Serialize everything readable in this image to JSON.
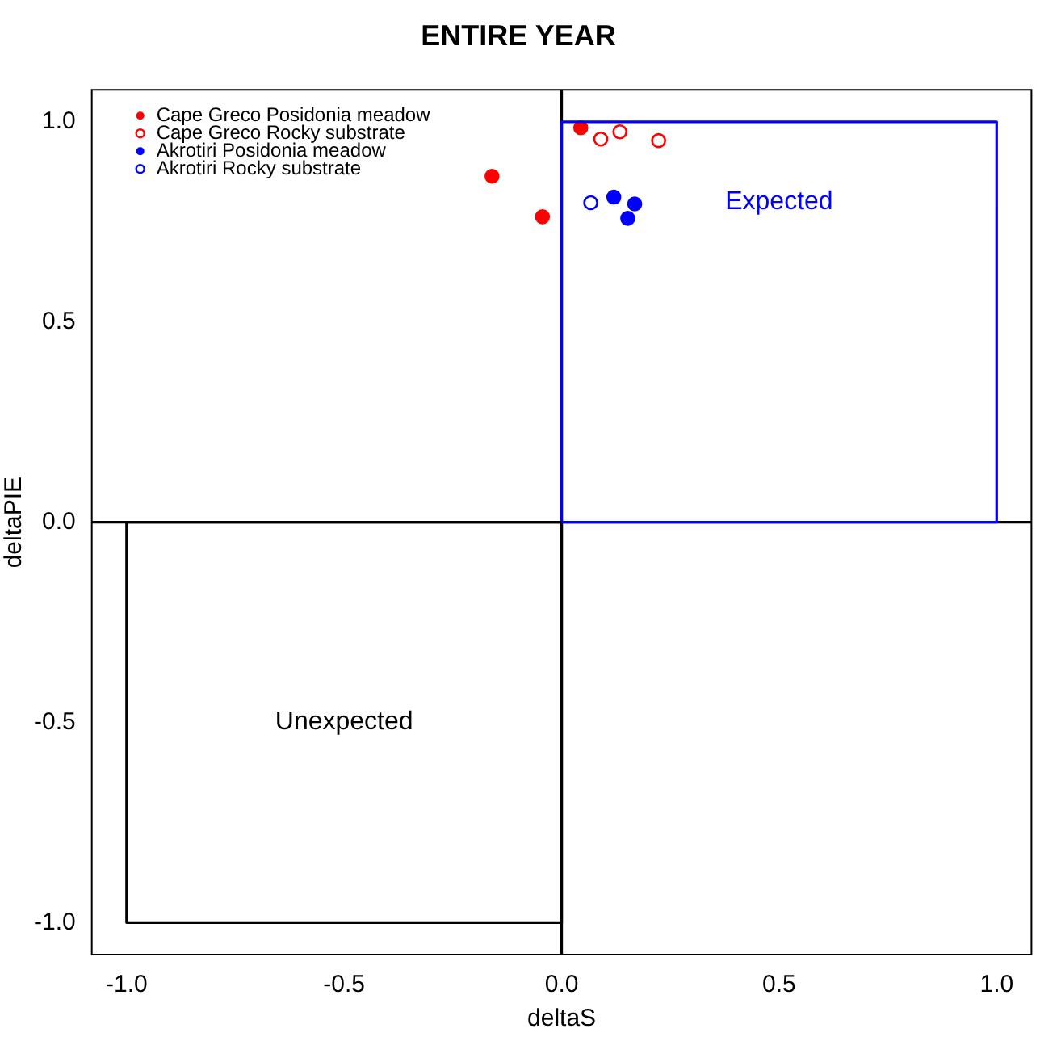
{
  "chart_data": {
    "type": "scatter",
    "title": "ENTIRE YEAR",
    "xlabel": "deltaS",
    "ylabel": "deltaPIE",
    "xlim": [
      -1.08,
      1.08
    ],
    "ylim": [
      -1.08,
      1.08
    ],
    "xticks": [
      {
        "value": -1,
        "label": "-1.0"
      },
      {
        "value": -0.5,
        "label": "-0.5"
      },
      {
        "value": 0,
        "label": "0.0"
      },
      {
        "value": 0.5,
        "label": "0.5"
      },
      {
        "value": 1,
        "label": "1.0"
      }
    ],
    "yticks": [
      {
        "value": -1,
        "label": "-1.0"
      },
      {
        "value": -0.5,
        "label": "-0.5"
      },
      {
        "value": 0,
        "label": "0.0"
      },
      {
        "value": 0.5,
        "label": "0.5"
      },
      {
        "value": 1,
        "label": "1.0"
      }
    ],
    "grid": false,
    "legend": "top left",
    "series": [
      {
        "name": "Cape Greco Posidonia meadow",
        "color": "#ff0000",
        "marker": "circle",
        "x": [
          0.044,
          -0.16,
          -0.044
        ],
        "values": [
          0.985,
          0.864,
          0.763
        ]
      },
      {
        "name": "Cape Greco Rocky substrate",
        "color": "#ff0000",
        "marker": "open circle",
        "x": [
          0.09,
          0.134,
          0.223
        ],
        "values": [
          0.957,
          0.975,
          0.953
        ]
      },
      {
        "name": "Akrotiri Posidonia meadow",
        "color": "#0000ff",
        "marker": "circle",
        "x": [
          0.12,
          0.168,
          0.152
        ],
        "values": [
          0.812,
          0.795,
          0.759
        ]
      },
      {
        "name": "Akrotiri Rocky substrate",
        "color": "#0000ff",
        "marker": "open circle",
        "x": [
          0.067
        ],
        "values": [
          0.798
        ]
      },
      {
        "type": "line",
        "color": "#000000",
        "marker": "none",
        "x": [
          0,
          0
        ],
        "values": [
          -1.08,
          1.08
        ]
      },
      {
        "type": "line",
        "color": "#000000",
        "marker": "none",
        "x": [
          -1.08,
          1.08
        ],
        "values": [
          0,
          0
        ]
      },
      {
        "type": "line",
        "color": "#0000ff",
        "marker": "none",
        "x": [
          0,
          0,
          1,
          1
        ],
        "values": [
          0,
          1,
          1,
          0
        ]
      },
      {
        "type": "line",
        "color": "#000000",
        "marker": "none",
        "x": [
          -1,
          -1,
          0,
          0
        ],
        "values": [
          0,
          -1,
          -1,
          0
        ]
      },
      {
        "type": "line",
        "color": "#0000ff",
        "marker": "none",
        "x": [
          0,
          1
        ],
        "values": [
          0,
          0
        ]
      },
      {
        "type": "line",
        "color": "#000000",
        "marker": "none",
        "x": [
          -1,
          0
        ],
        "values": [
          0,
          0
        ]
      }
    ],
    "annotations": [
      "Expected",
      "Unexpected"
    ]
  }
}
